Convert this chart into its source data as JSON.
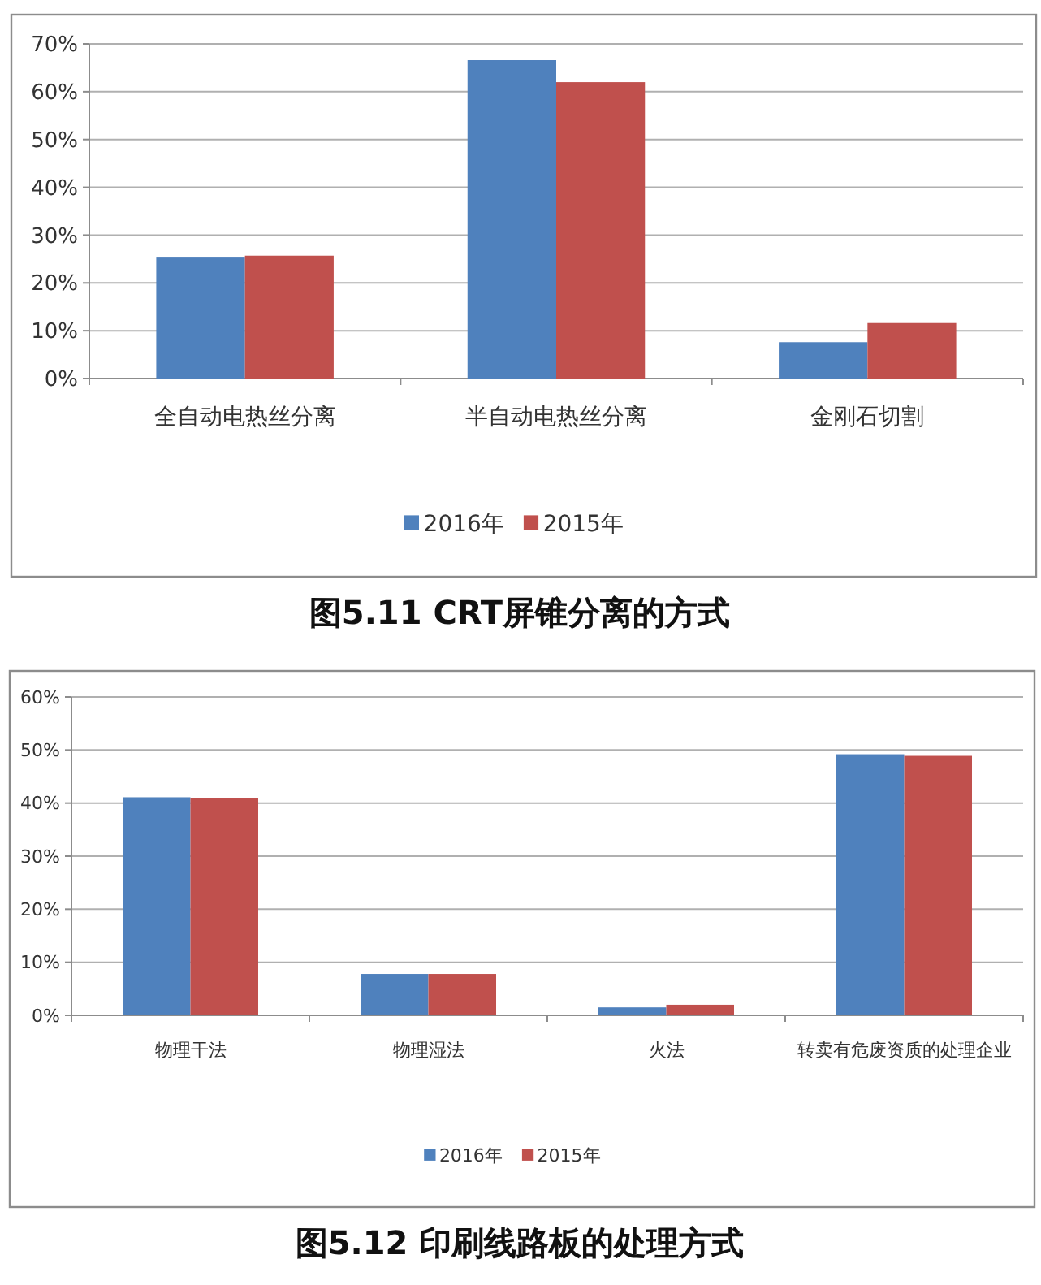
{
  "chart_data": [
    {
      "type": "bar",
      "title": "图5.11 CRT屏锥分离的方式",
      "categories": [
        "全自动电热丝分离",
        "半自动电热丝分离",
        "金刚石切割"
      ],
      "series": [
        {
          "name": "2016年",
          "color": "#4f81bd",
          "values": [
            25.3,
            66.6,
            7.6
          ]
        },
        {
          "name": "2015年",
          "color": "#c0504d",
          "values": [
            25.7,
            62.0,
            11.6
          ]
        }
      ],
      "ylim": [
        0,
        70
      ],
      "yticks": [
        {
          "value": 0,
          "label": "0%"
        },
        {
          "value": 10,
          "label": "10%"
        },
        {
          "value": 20,
          "label": "20%"
        },
        {
          "value": 30,
          "label": "30%"
        },
        {
          "value": 40,
          "label": "40%"
        },
        {
          "value": 50,
          "label": "50%"
        },
        {
          "value": 60,
          "label": "60%"
        },
        {
          "value": 70,
          "label": "70%"
        }
      ],
      "grid": "y",
      "legend": "bottom"
    },
    {
      "type": "bar",
      "title": "图5.12 印刷线路板的处理方式",
      "categories": [
        "物理干法",
        "物理湿法",
        "火法",
        "转卖有危废资质的处理企业"
      ],
      "series": [
        {
          "name": "2016年",
          "color": "#4f81bd",
          "values": [
            41.1,
            7.8,
            1.5,
            49.2
          ]
        },
        {
          "name": "2015年",
          "color": "#c0504d",
          "values": [
            40.9,
            7.8,
            2.0,
            48.9
          ]
        }
      ],
      "ylim": [
        0,
        60
      ],
      "yticks": [
        {
          "value": 0,
          "label": "0%"
        },
        {
          "value": 10,
          "label": "10%"
        },
        {
          "value": 20,
          "label": "20%"
        },
        {
          "value": 30,
          "label": "30%"
        },
        {
          "value": 40,
          "label": "40%"
        },
        {
          "value": 50,
          "label": "50%"
        },
        {
          "value": 60,
          "label": "60%"
        }
      ],
      "grid": "y",
      "legend": "bottom"
    }
  ]
}
